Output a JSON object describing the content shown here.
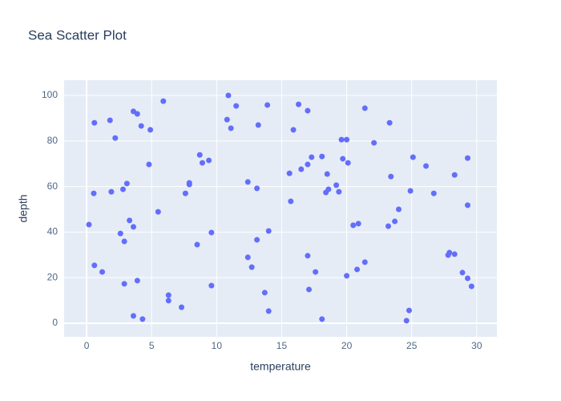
{
  "chart_data": {
    "type": "scatter",
    "title": "Sea Scatter Plot",
    "x_label": "temperature",
    "y_label": "depth",
    "color": "#636efa",
    "grid": true,
    "xlim": [
      -1.73,
      31.55
    ],
    "ylim": [
      -6.0,
      106.7
    ],
    "xticks": [
      0,
      5,
      10,
      15,
      20,
      25,
      30
    ],
    "yticks": [
      0,
      20,
      40,
      60,
      80,
      100
    ],
    "x": [
      0.18,
      0.55,
      0.6,
      0.6,
      1.2,
      1.8,
      1.9,
      2.2,
      2.6,
      2.8,
      2.9,
      2.9,
      3.1,
      3.3,
      3.6,
      3.6,
      3.6,
      3.9,
      3.9,
      4.2,
      4.3,
      4.9,
      4.8,
      5.5,
      5.9,
      6.3,
      6.3,
      7.3,
      7.6,
      7.9,
      7.9,
      8.5,
      8.7,
      8.9,
      9.4,
      9.6,
      9.6,
      10.8,
      10.9,
      11.1,
      11.5,
      12.4,
      12.4,
      12.7,
      13.1,
      13.1,
      13.2,
      13.7,
      13.9,
      14.0,
      14.0,
      15.6,
      15.7,
      15.9,
      16.3,
      16.5,
      17.0,
      17.0,
      17.0,
      17.1,
      17.3,
      17.6,
      18.1,
      18.1,
      18.4,
      18.5,
      18.6,
      19.2,
      19.4,
      19.6,
      19.7,
      20.0,
      20.0,
      20.1,
      20.5,
      20.8,
      20.9,
      21.4,
      21.4,
      22.1,
      23.2,
      23.3,
      23.4,
      23.7,
      24.0,
      24.6,
      24.8,
      24.9,
      25.1,
      26.1,
      26.7,
      27.8,
      27.9,
      28.3,
      28.3,
      28.9,
      29.3,
      29.3,
      29.3,
      29.6
    ],
    "values": [
      43.3,
      57.0,
      88.0,
      25.4,
      22.5,
      89.1,
      57.7,
      81.3,
      39.4,
      58.8,
      35.9,
      17.3,
      61.3,
      45.1,
      42.3,
      93.0,
      3.2,
      91.9,
      18.7,
      86.6,
      1.8,
      84.9,
      69.7,
      48.9,
      97.5,
      12.3,
      9.9,
      7.0,
      57.0,
      61.6,
      60.9,
      34.5,
      73.9,
      70.4,
      71.5,
      39.8,
      16.5,
      89.4,
      100,
      85.6,
      95.4,
      62.0,
      28.9,
      24.6,
      59.2,
      36.6,
      87.0,
      13.4,
      95.8,
      40.5,
      5.3,
      65.8,
      53.5,
      84.9,
      96.1,
      67.6,
      93.3,
      69.7,
      29.6,
      14.8,
      72.9,
      22.5,
      73.2,
      1.8,
      57.4,
      65.5,
      58.8,
      60.6,
      57.7,
      80.6,
      72.2,
      80.6,
      20.8,
      70.4,
      43.0,
      23.6,
      43.7,
      26.8,
      94.4,
      79.2,
      42.6,
      88.0,
      64.4,
      44.7,
      50.0,
      1.1,
      5.6,
      58.1,
      72.9,
      69.0,
      57.0,
      29.9,
      31.0,
      65.1,
      30.3,
      22.2,
      51.8,
      19.7,
      72.5,
      16.2
    ]
  }
}
